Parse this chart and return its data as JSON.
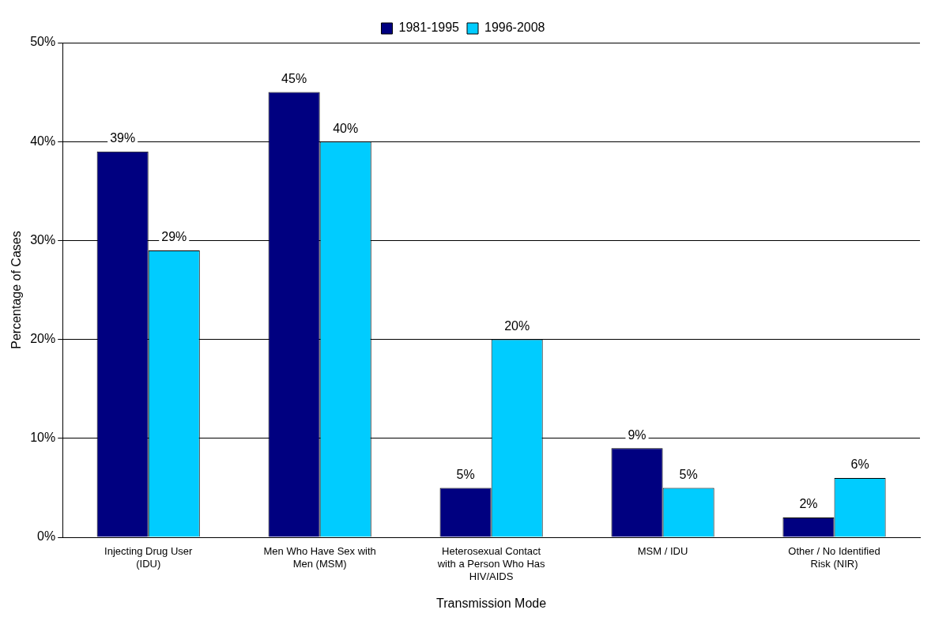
{
  "chart_data": {
    "type": "bar",
    "xlabel": "Transmission Mode",
    "ylabel": "Percentage of Cases",
    "categories": [
      "Injecting Drug User (IDU)",
      "Men Who Have Sex with Men (MSM)",
      "Heterosexual Contact with a Person Who Has HIV/AIDS",
      "MSM / IDU",
      "Other / No Identified Risk (NIR)"
    ],
    "series": [
      {
        "name": "1981-1995",
        "color": "#000080",
        "values": [
          39,
          45,
          5,
          9,
          2
        ],
        "value_labels": [
          "39%",
          "45%",
          "5%",
          "9%",
          "2%"
        ]
      },
      {
        "name": "1996-2008",
        "color": "#00ccff",
        "values": [
          29,
          40,
          20,
          5,
          6
        ],
        "value_labels": [
          "29%",
          "40%",
          "20%",
          "5%",
          "6%"
        ]
      }
    ],
    "ylim": [
      0,
      50
    ],
    "yticks": [
      {
        "value": 0,
        "label": "0%"
      },
      {
        "value": 10,
        "label": "10%"
      },
      {
        "value": 20,
        "label": "20%"
      },
      {
        "value": 30,
        "label": "30%"
      },
      {
        "value": 40,
        "label": "40%"
      },
      {
        "value": 50,
        "label": "50%"
      }
    ],
    "grid": "y",
    "legend": "top"
  }
}
